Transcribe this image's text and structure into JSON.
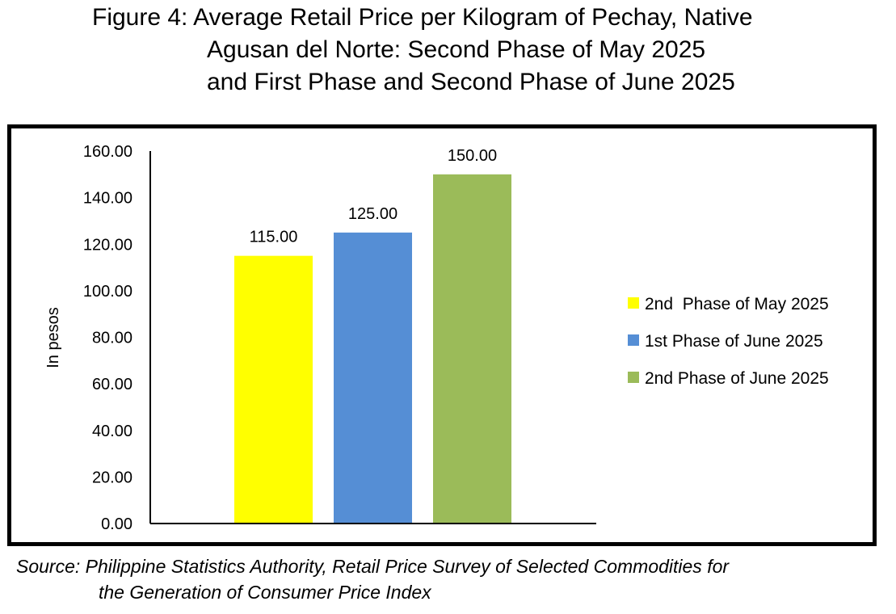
{
  "title": {
    "line1": "Figure 4: Average Retail Price per Kilogram of Pechay, Native",
    "line2": "Agusan del Norte: Second Phase of May 2025",
    "line3": "and First Phase and Second Phase of June 2025"
  },
  "source": {
    "line1": "Source: Philippine Statistics Authority, Retail Price Survey of Selected Commodities for",
    "line2": "the Generation of Consumer Price Index"
  },
  "chart_data": {
    "type": "bar",
    "ylabel": "In pesos",
    "ylim": [
      0,
      160
    ],
    "yticks": [
      "0.00",
      "20.00",
      "40.00",
      "60.00",
      "80.00",
      "100.00",
      "120.00",
      "140.00",
      "160.00"
    ],
    "grid": false,
    "legend_position": "right",
    "series": [
      {
        "name": "2nd  Phase of May 2025",
        "value": 115.0,
        "label": "115.00",
        "color": "#FFFF00"
      },
      {
        "name": "1st Phase of June 2025",
        "value": 125.0,
        "label": "125.00",
        "color": "#558ED5"
      },
      {
        "name": "2nd Phase of June 2025",
        "value": 150.0,
        "label": "150.00",
        "color": "#9BBB59"
      }
    ]
  }
}
